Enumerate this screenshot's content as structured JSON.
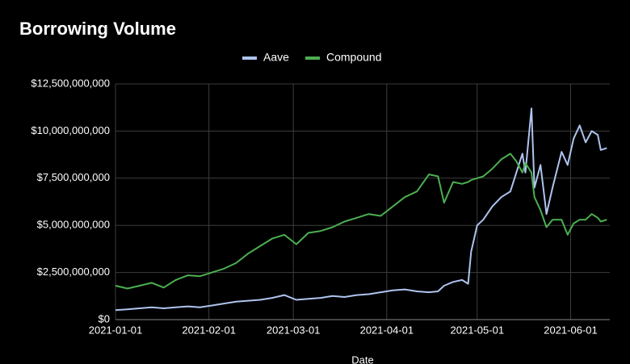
{
  "chart_data": {
    "type": "line",
    "title": "Borrowing Volume",
    "x_label": "Date",
    "x": [
      "2021-01-01",
      "2021-01-05",
      "2021-01-09",
      "2021-01-13",
      "2021-01-17",
      "2021-01-21",
      "2021-01-25",
      "2021-01-29",
      "2021-02-02",
      "2021-02-06",
      "2021-02-10",
      "2021-02-14",
      "2021-02-18",
      "2021-02-22",
      "2021-02-26",
      "2021-03-02",
      "2021-03-06",
      "2021-03-10",
      "2021-03-14",
      "2021-03-18",
      "2021-03-22",
      "2021-03-26",
      "2021-03-30",
      "2021-04-03",
      "2021-04-07",
      "2021-04-11",
      "2021-04-15",
      "2021-04-18",
      "2021-04-20",
      "2021-04-23",
      "2021-04-26",
      "2021-04-28",
      "2021-04-29",
      "2021-05-01",
      "2021-05-03",
      "2021-05-06",
      "2021-05-09",
      "2021-05-12",
      "2021-05-14",
      "2021-05-16",
      "2021-05-17",
      "2021-05-19",
      "2021-05-20",
      "2021-05-22",
      "2021-05-24",
      "2021-05-26",
      "2021-05-29",
      "2021-05-31",
      "2021-06-02",
      "2021-06-04",
      "2021-06-06",
      "2021-06-08",
      "2021-06-10",
      "2021-06-11",
      "2021-06-13"
    ],
    "series": [
      {
        "name": "Aave",
        "color": "#aec4ee",
        "values": [
          500000000,
          550000000,
          600000000,
          650000000,
          600000000,
          650000000,
          700000000,
          650000000,
          750000000,
          850000000,
          950000000,
          1000000000,
          1050000000,
          1150000000,
          1300000000,
          1050000000,
          1100000000,
          1150000000,
          1250000000,
          1200000000,
          1300000000,
          1350000000,
          1450000000,
          1550000000,
          1600000000,
          1500000000,
          1450000000,
          1500000000,
          1800000000,
          2000000000,
          2100000000,
          1900000000,
          3600000000,
          5000000000,
          5300000000,
          6000000000,
          6500000000,
          6800000000,
          7800000000,
          8800000000,
          7800000000,
          11200000000,
          7000000000,
          8200000000,
          5600000000,
          7000000000,
          8900000000,
          8200000000,
          9600000000,
          10300000000,
          9400000000,
          10000000000,
          9800000000,
          9000000000,
          9100000000
        ]
      },
      {
        "name": "Compound",
        "color": "#4caf50",
        "values": [
          1800000000,
          1650000000,
          1800000000,
          1950000000,
          1700000000,
          2100000000,
          2350000000,
          2300000000,
          2500000000,
          2700000000,
          3000000000,
          3500000000,
          3900000000,
          4300000000,
          4500000000,
          4000000000,
          4600000000,
          4700000000,
          4900000000,
          5200000000,
          5400000000,
          5600000000,
          5500000000,
          6000000000,
          6500000000,
          6800000000,
          7700000000,
          7600000000,
          6200000000,
          7300000000,
          7200000000,
          7300000000,
          7400000000,
          7500000000,
          7600000000,
          8000000000,
          8500000000,
          8800000000,
          8400000000,
          7800000000,
          8300000000,
          7800000000,
          6500000000,
          5800000000,
          4900000000,
          5300000000,
          5300000000,
          4500000000,
          5100000000,
          5300000000,
          5300000000,
          5600000000,
          5400000000,
          5200000000,
          5300000000
        ]
      }
    ],
    "xlim": [
      "2021-01-01",
      "2021-06-14"
    ],
    "xticks": [
      "2021-01-01",
      "2021-02-01",
      "2021-03-01",
      "2021-04-01",
      "2021-05-01",
      "2021-06-01"
    ],
    "ylim": [
      0,
      12500000000
    ],
    "yticks": [
      {
        "value": 0,
        "label": "$0"
      },
      {
        "value": 2500000000,
        "label": "$2,500,000,000"
      },
      {
        "value": 5000000000,
        "label": "$5,000,000,000"
      },
      {
        "value": 7500000000,
        "label": "$7,500,000,000"
      },
      {
        "value": 10000000000,
        "label": "$10,000,000,000"
      },
      {
        "value": 12500000000,
        "label": "$12,500,000,000"
      }
    ],
    "grid": true
  }
}
